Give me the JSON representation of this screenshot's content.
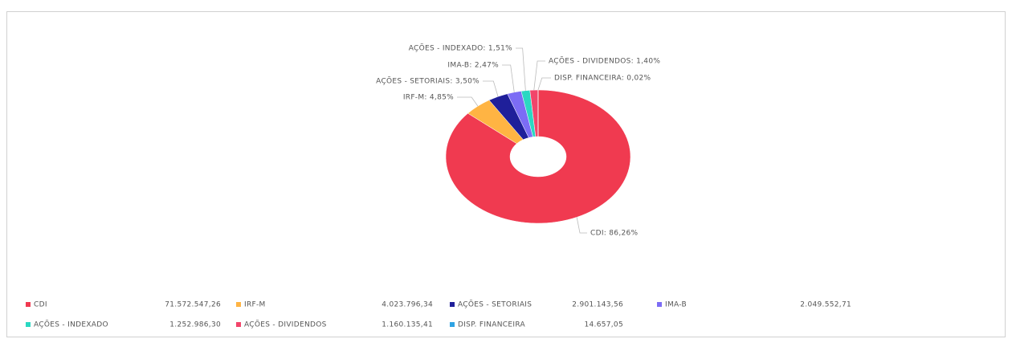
{
  "chart_data": {
    "type": "donut",
    "categories": [
      "CDI",
      "IRF-M",
      "AÇÕES - SETORIAIS",
      "IMA-B",
      "AÇÕES - INDEXADO",
      "AÇÕES - DIVIDENDOS",
      "DISP. FINANCEIRA"
    ],
    "values": [
      86.26,
      4.85,
      3.5,
      2.47,
      1.51,
      1.4,
      0.02
    ],
    "labels": [
      "CDI: 86,26%",
      "IRF-M: 4,85%",
      "AÇÕES - SETORIAIS: 3,50%",
      "IMA-B: 2,47%",
      "AÇÕES - INDEXADO: 1,51%",
      "AÇÕES - DIVIDENDOS: 1,40%",
      "DISP. FINANCEIRA: 0,02%"
    ],
    "colors": [
      "#f03a50",
      "#ffb443",
      "#1f1f9a",
      "#7c6cf5",
      "#2bd8c2",
      "#f2456a",
      "#2fa3e3"
    ],
    "amounts": [
      71572547.26,
      4023796.34,
      2901143.56,
      2049552.71,
      1252986.3,
      1160135.41,
      14657.05
    ],
    "amount_labels": [
      "71.572.547,26",
      "4.023.796,34",
      "2.901.143,56",
      "2.049.552,71",
      "1.252.986,30",
      "1.160.135,41",
      "14.657,05"
    ]
  }
}
